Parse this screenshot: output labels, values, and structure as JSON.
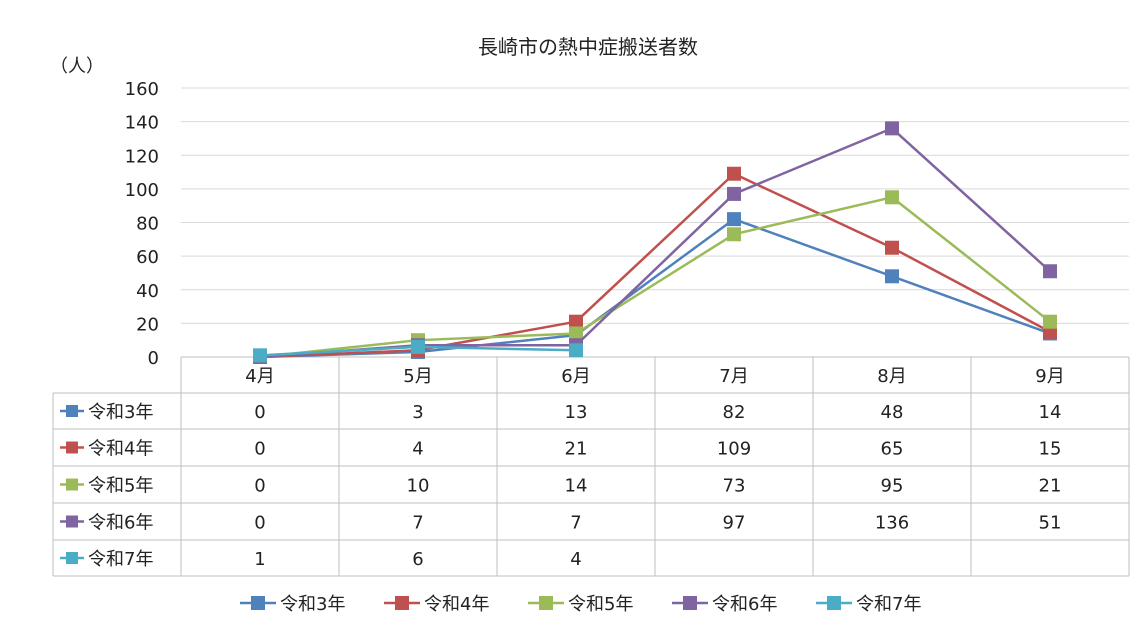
{
  "chart_data": {
    "type": "line",
    "title": "長崎市の熱中症搬送者数",
    "ylabel": "（人）",
    "xlabel": "",
    "ylim": [
      0,
      160
    ],
    "yticks": [
      0,
      20,
      40,
      60,
      80,
      100,
      120,
      140,
      160
    ],
    "grid": true,
    "legend_position": "bottom",
    "categories": [
      "4月",
      "5月",
      "6月",
      "7月",
      "8月",
      "9月"
    ],
    "series": [
      {
        "name": "令和3年",
        "color": "#4f81bd",
        "values": [
          0,
          3,
          13,
          82,
          48,
          14
        ]
      },
      {
        "name": "令和4年",
        "color": "#c0504d",
        "values": [
          0,
          4,
          21,
          109,
          65,
          15
        ]
      },
      {
        "name": "令和5年",
        "color": "#9bbb59",
        "values": [
          0,
          10,
          14,
          73,
          95,
          21
        ]
      },
      {
        "name": "令和6年",
        "color": "#8064a2",
        "values": [
          0,
          7,
          7,
          97,
          136,
          51
        ]
      },
      {
        "name": "令和7年",
        "color": "#4bacc6",
        "values": [
          1,
          6,
          4,
          null,
          null,
          null
        ]
      }
    ]
  }
}
